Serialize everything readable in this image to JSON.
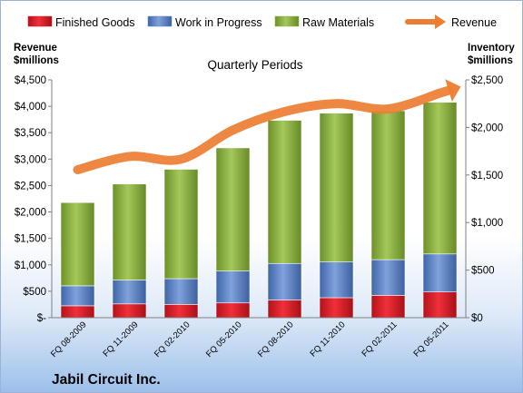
{
  "chart_data": {
    "type": "bar",
    "stacked": true,
    "title": "Quarterly Periods",
    "footer": "Jabil Circuit Inc.",
    "categories": [
      "FQ 08-2009",
      "FQ 11-2009",
      "FQ 02-2010",
      "FQ 05-2010",
      "FQ 08-2010",
      "FQ 11-2010",
      "FQ 02-2011",
      "FQ 05-2011"
    ],
    "series": [
      {
        "name": "Finished Goods",
        "axis": "right",
        "color": "#e01b24",
        "values": [
          125,
          145,
          140,
          155,
          185,
          210,
          235,
          270
        ]
      },
      {
        "name": "Work in Progress",
        "axis": "right",
        "color": "#5a82c4",
        "values": [
          210,
          250,
          270,
          335,
          385,
          375,
          375,
          400
        ]
      },
      {
        "name": "Raw Materials",
        "axis": "right",
        "color": "#8cb43c",
        "values": [
          875,
          1010,
          1150,
          1295,
          1505,
          1565,
          1565,
          1595
        ]
      },
      {
        "name": "Revenue",
        "axis": "left",
        "type": "line",
        "color": "#ed7d31",
        "values": [
          2800,
          3050,
          3000,
          3550,
          3900,
          4050,
          3950,
          4250
        ]
      }
    ],
    "left_axis": {
      "label_lines": [
        "Revenue",
        "$millions"
      ],
      "min": 0,
      "max": 4500,
      "step": 500,
      "ticks": [
        "$-",
        "$500",
        "$1,000",
        "$1,500",
        "$2,000",
        "$2,500",
        "$3,000",
        "$3,500",
        "$4,000",
        "$4,500"
      ]
    },
    "right_axis": {
      "label_lines": [
        "Inventory",
        "$millions"
      ],
      "min": 0,
      "max": 2500,
      "step": 500,
      "ticks": [
        "$0",
        "$500",
        "$1,000",
        "$1,500",
        "$2,000",
        "$2,500"
      ]
    },
    "legend_position": "top",
    "grid": false
  }
}
